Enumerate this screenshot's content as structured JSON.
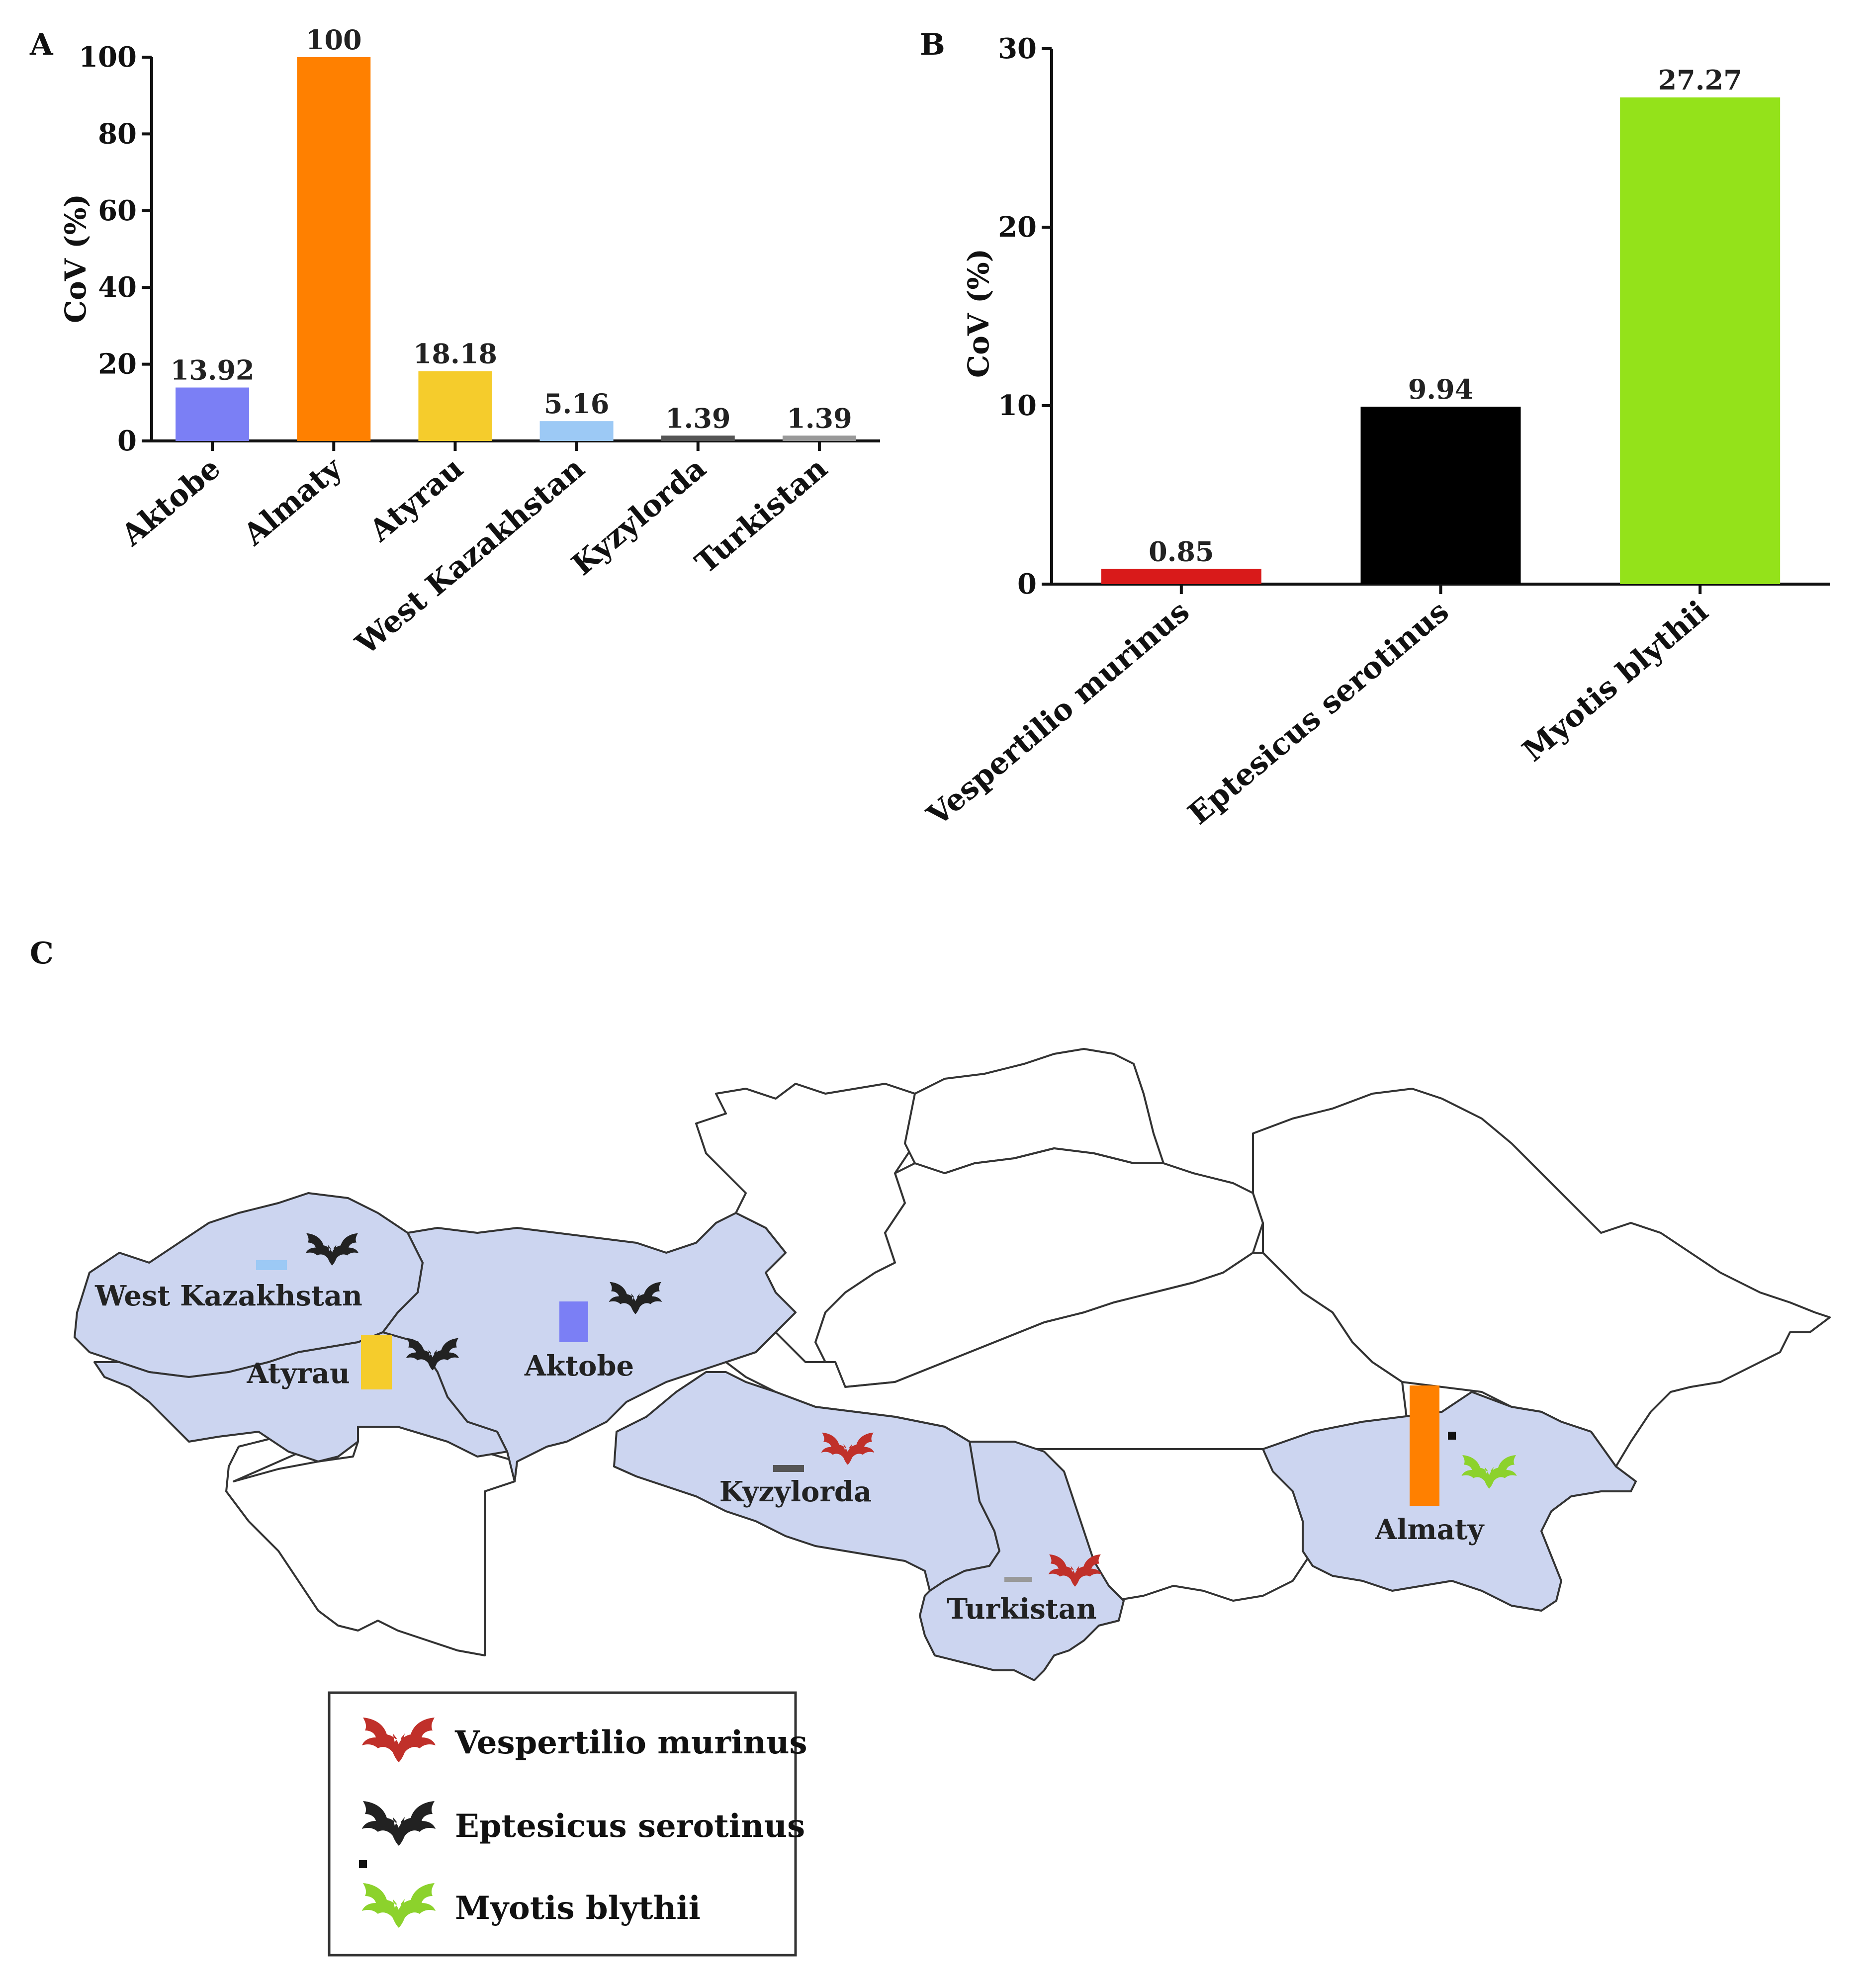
{
  "chart_data": [
    {
      "panel": "A",
      "type": "bar",
      "ylabel": "CoV (%)",
      "ylim": [
        0,
        100
      ],
      "yticks": [
        0,
        20,
        40,
        60,
        80,
        100
      ],
      "categories": [
        "Aktobe",
        "Almaty",
        "Atyrau",
        "West Kazakhstan",
        "Kyzylorda",
        "Turkistan"
      ],
      "values": [
        13.92,
        100,
        18.18,
        5.16,
        1.39,
        1.39
      ],
      "value_labels": [
        "13.92",
        "100",
        "18.18",
        "5.16",
        "1.39",
        "1.39"
      ],
      "colors": [
        "#7b7ff5",
        "#ff8000",
        "#f5cc2c",
        "#9cc9f5",
        "#555555",
        "#999999"
      ]
    },
    {
      "panel": "B",
      "type": "bar",
      "ylabel": "CoV (%)",
      "ylim": [
        0,
        30
      ],
      "yticks": [
        0,
        10,
        20,
        30
      ],
      "categories": [
        "Vespertilio murinus",
        "Eptesicus serotinus",
        "Myotis blythii"
      ],
      "values": [
        0.85,
        9.94,
        27.27
      ],
      "value_labels": [
        "0.85",
        "9.94",
        "27.27"
      ],
      "colors": [
        "#d91a1a",
        "#000000",
        "#94e21a"
      ]
    }
  ],
  "map": {
    "panel": "C",
    "region_labels": [
      "West Kazakhstan",
      "Atyrau",
      "Aktobe",
      "Kyzylorda",
      "Turkistan",
      "Almaty"
    ],
    "region_values": [
      5.16,
      18.18,
      13.92,
      1.39,
      1.39,
      100
    ],
    "region_bar_colors": [
      "#9cc9f5",
      "#f5cc2c",
      "#7b7ff5",
      "#555555",
      "#999999",
      "#ff8000"
    ],
    "region_bats": [
      "Eptesicus serotinus",
      "Eptesicus serotinus",
      "Eptesicus serotinus",
      "Vespertilio murinus",
      "Vespertilio murinus",
      "Myotis blythii"
    ],
    "region_fill": "#ccd5f0",
    "legend": [
      {
        "label": "Vespertilio murinus",
        "color": "#c0302a",
        "icon": "red-bat-icon"
      },
      {
        "label": "Eptesicus serotinus",
        "color": "#222222",
        "icon": "black-bat-icon"
      },
      {
        "label": "Myotis blythii",
        "color": "#8cd22c",
        "icon": "green-bat-icon"
      }
    ]
  },
  "panel_letters": {
    "a": "A",
    "b": "B",
    "c": "C"
  }
}
